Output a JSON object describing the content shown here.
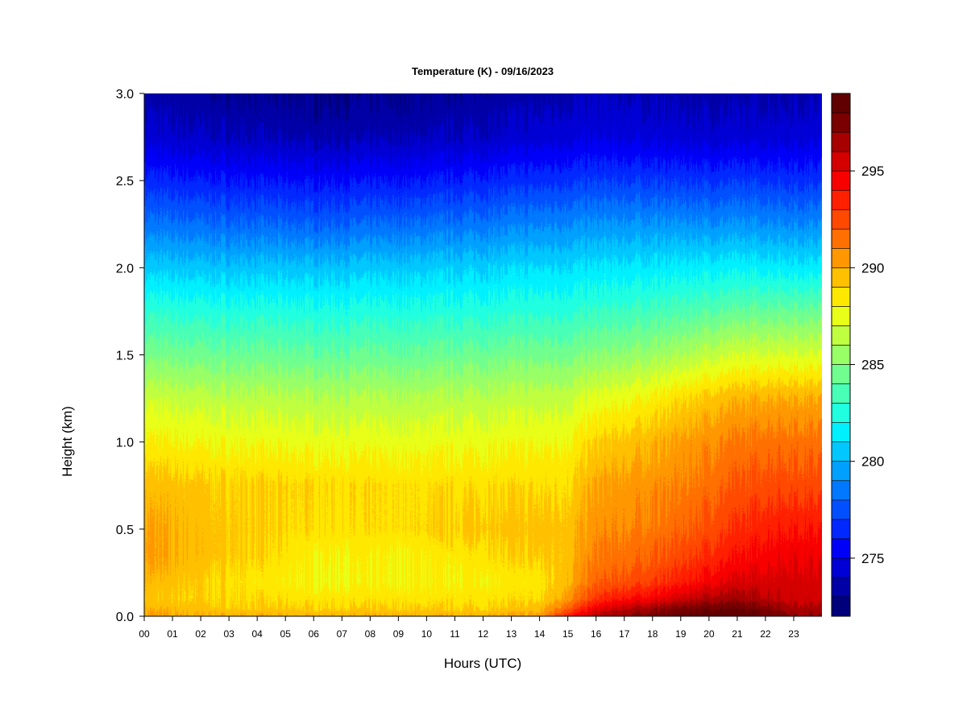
{
  "chart_data": {
    "type": "heatmap",
    "title": "Temperature (K) - 09/16/2023",
    "xlabel": "Hours (UTC)",
    "ylabel": "Height (km)",
    "x_ticks": [
      "00",
      "01",
      "02",
      "03",
      "04",
      "05",
      "06",
      "07",
      "08",
      "09",
      "10",
      "11",
      "12",
      "13",
      "14",
      "15",
      "16",
      "17",
      "18",
      "19",
      "20",
      "21",
      "22",
      "23"
    ],
    "x_range": [
      0,
      24
    ],
    "y_ticks": [
      "0.0",
      "0.5",
      "1.0",
      "1.5",
      "2.0",
      "2.5",
      "3.0"
    ],
    "y_range": [
      0,
      3
    ],
    "colorbar": {
      "range": [
        272,
        299
      ],
      "step": 1,
      "labels": [
        "275",
        "280",
        "285",
        "290",
        "295"
      ],
      "label_values": [
        275,
        280,
        285,
        290,
        295
      ],
      "colors": [
        "#00007a",
        "#0000a6",
        "#0000d4",
        "#0000f8",
        "#0028ff",
        "#0050ff",
        "#0078ff",
        "#00a0ff",
        "#00c8ff",
        "#00f0ff",
        "#20ffdf",
        "#48ffb7",
        "#70ff8f",
        "#98ff67",
        "#c0ff3f",
        "#e8ff17",
        "#ffe800",
        "#ffc000",
        "#ff9800",
        "#ff7000",
        "#ff4800",
        "#ff2000",
        "#f80000",
        "#d40000",
        "#a60000",
        "#7a0000",
        "#600000"
      ]
    },
    "series": [
      {
        "height": 0.0,
        "x": [
          0,
          3,
          6,
          9,
          12,
          14,
          15,
          16,
          17,
          18,
          19,
          20,
          21,
          22,
          23,
          24
        ],
        "values": [
          290.3,
          289.9,
          289.9,
          289.9,
          289.9,
          290.3,
          293.8,
          296.4,
          297.2,
          297.8,
          298.4,
          298.8,
          298.9,
          298.2,
          297.2,
          297.0
        ]
      },
      {
        "height": 0.05,
        "x": [
          0,
          3,
          6,
          9,
          12,
          14,
          15,
          16,
          17,
          18,
          19,
          20,
          21,
          22,
          23,
          24
        ],
        "values": [
          289.8,
          289.2,
          289.0,
          289.0,
          289.0,
          289.5,
          291.8,
          294.5,
          295.8,
          296.6,
          297.3,
          297.8,
          297.8,
          297.3,
          296.4,
          296.3
        ]
      },
      {
        "height": 0.1,
        "x": [
          0,
          3,
          6,
          9,
          12,
          14,
          15,
          16,
          17,
          18,
          19,
          20,
          21,
          22,
          23,
          24
        ],
        "values": [
          289.3,
          288.9,
          288.6,
          288.6,
          288.6,
          288.8,
          290.6,
          293.0,
          294.0,
          294.6,
          295.6,
          296.4,
          296.6,
          296.2,
          295.6,
          295.5
        ]
      },
      {
        "height": 0.2,
        "x": [
          0,
          3,
          6,
          9,
          12,
          14,
          15,
          16,
          17,
          18,
          19,
          20,
          21,
          22,
          23,
          24
        ],
        "values": [
          289.8,
          288.7,
          287.9,
          287.9,
          288.2,
          288.5,
          289.8,
          291.8,
          292.3,
          292.8,
          293.6,
          294.6,
          295.2,
          295.4,
          295.5,
          295.3
        ]
      },
      {
        "height": 0.35,
        "x": [
          0,
          3,
          6,
          9,
          12,
          14,
          15,
          16,
          17,
          18,
          19,
          20,
          21,
          22,
          23,
          24
        ],
        "values": [
          290.3,
          289.3,
          288.2,
          288.0,
          288.7,
          289.1,
          289.5,
          291.1,
          291.5,
          291.9,
          292.5,
          293.3,
          293.9,
          294.5,
          294.9,
          294.7
        ]
      },
      {
        "height": 0.5,
        "x": [
          0,
          3,
          6,
          9,
          12,
          14,
          15,
          16,
          17,
          18,
          19,
          20,
          21,
          22,
          23,
          24
        ],
        "values": [
          290.2,
          289.3,
          288.7,
          288.7,
          289.4,
          289.4,
          289.5,
          290.7,
          290.9,
          291.3,
          291.8,
          292.5,
          293.1,
          293.7,
          294.0,
          293.9
        ]
      },
      {
        "height": 0.75,
        "x": [
          0,
          3,
          6,
          9,
          12,
          14,
          15,
          16,
          17,
          18,
          19,
          20,
          21,
          22,
          23,
          24
        ],
        "values": [
          289.6,
          289.1,
          288.9,
          288.7,
          288.8,
          288.8,
          288.9,
          290.1,
          290.4,
          290.7,
          291.0,
          291.6,
          292.1,
          292.5,
          292.6,
          292.5
        ]
      },
      {
        "height": 1.0,
        "x": [
          0,
          3,
          6,
          9,
          12,
          14,
          15,
          16,
          17,
          18,
          19,
          20,
          21,
          22,
          23,
          24
        ],
        "values": [
          288.2,
          287.8,
          287.6,
          287.5,
          287.7,
          287.8,
          288.0,
          289.0,
          289.4,
          289.8,
          290.3,
          290.8,
          291.2,
          291.5,
          291.6,
          291.5
        ]
      },
      {
        "height": 1.25,
        "x": [
          0,
          3,
          6,
          9,
          12,
          14,
          15,
          16,
          17,
          18,
          19,
          20,
          21,
          22,
          23,
          24
        ],
        "values": [
          286.8,
          286.4,
          286.2,
          286.1,
          286.4,
          286.5,
          286.7,
          287.3,
          287.7,
          288.2,
          288.8,
          289.4,
          289.7,
          290.0,
          290.1,
          290.0
        ]
      },
      {
        "height": 1.5,
        "x": [
          0,
          3,
          6,
          9,
          12,
          14,
          15,
          16,
          17,
          18,
          19,
          20,
          21,
          22,
          23,
          24
        ],
        "values": [
          284.7,
          284.4,
          284.2,
          284.2,
          284.5,
          284.6,
          284.7,
          285.0,
          285.3,
          285.6,
          286.0,
          286.6,
          286.9,
          287.1,
          287.2,
          287.1
        ]
      },
      {
        "height": 1.75,
        "x": [
          0,
          3,
          6,
          9,
          12,
          14,
          15,
          16,
          17,
          18,
          19,
          20,
          21,
          22,
          23,
          24
        ],
        "values": [
          282.8,
          282.5,
          282.4,
          282.4,
          282.6,
          282.7,
          282.8,
          283.0,
          283.2,
          283.4,
          283.6,
          283.9,
          284.1,
          284.3,
          284.4,
          284.3
        ]
      },
      {
        "height": 2.0,
        "x": [
          0,
          3,
          6,
          9,
          12,
          14,
          15,
          16,
          17,
          18,
          19,
          20,
          21,
          22,
          23,
          24
        ],
        "values": [
          280.6,
          280.4,
          280.4,
          280.5,
          280.8,
          281.0,
          281.1,
          281.2,
          281.3,
          281.4,
          281.5,
          281.6,
          281.6,
          281.6,
          281.5,
          281.4
        ]
      },
      {
        "height": 2.25,
        "x": [
          0,
          3,
          6,
          9,
          12,
          14,
          15,
          16,
          17,
          18,
          19,
          20,
          21,
          22,
          23,
          24
        ],
        "values": [
          278.4,
          278.1,
          277.9,
          278.1,
          278.5,
          278.8,
          279.0,
          279.1,
          279.2,
          279.2,
          279.2,
          279.1,
          279.1,
          279.1,
          279.0,
          279.0
        ]
      },
      {
        "height": 2.5,
        "x": [
          0,
          3,
          6,
          9,
          12,
          14,
          15,
          16,
          17,
          18,
          19,
          20,
          21,
          22,
          23,
          24
        ],
        "values": [
          276.4,
          276.0,
          275.8,
          275.9,
          276.3,
          276.6,
          276.8,
          276.9,
          276.9,
          276.9,
          276.8,
          276.8,
          276.8,
          276.8,
          276.7,
          276.7
        ]
      },
      {
        "height": 2.75,
        "x": [
          0,
          3,
          6,
          9,
          12,
          14,
          15,
          16,
          17,
          18,
          19,
          20,
          21,
          22,
          23,
          24
        ],
        "values": [
          274.5,
          274.0,
          273.7,
          273.8,
          274.2,
          274.5,
          274.7,
          274.8,
          274.8,
          274.7,
          274.6,
          274.5,
          274.5,
          274.6,
          274.7,
          274.7
        ]
      },
      {
        "height": 3.0,
        "x": [
          0,
          3,
          6,
          9,
          12,
          14,
          15,
          16,
          17,
          18,
          19,
          20,
          21,
          22,
          23,
          24
        ],
        "values": [
          273.6,
          273.1,
          272.8,
          272.9,
          273.3,
          273.6,
          273.8,
          273.9,
          273.9,
          273.8,
          273.7,
          273.6,
          273.6,
          273.7,
          273.8,
          273.8
        ]
      }
    ]
  }
}
